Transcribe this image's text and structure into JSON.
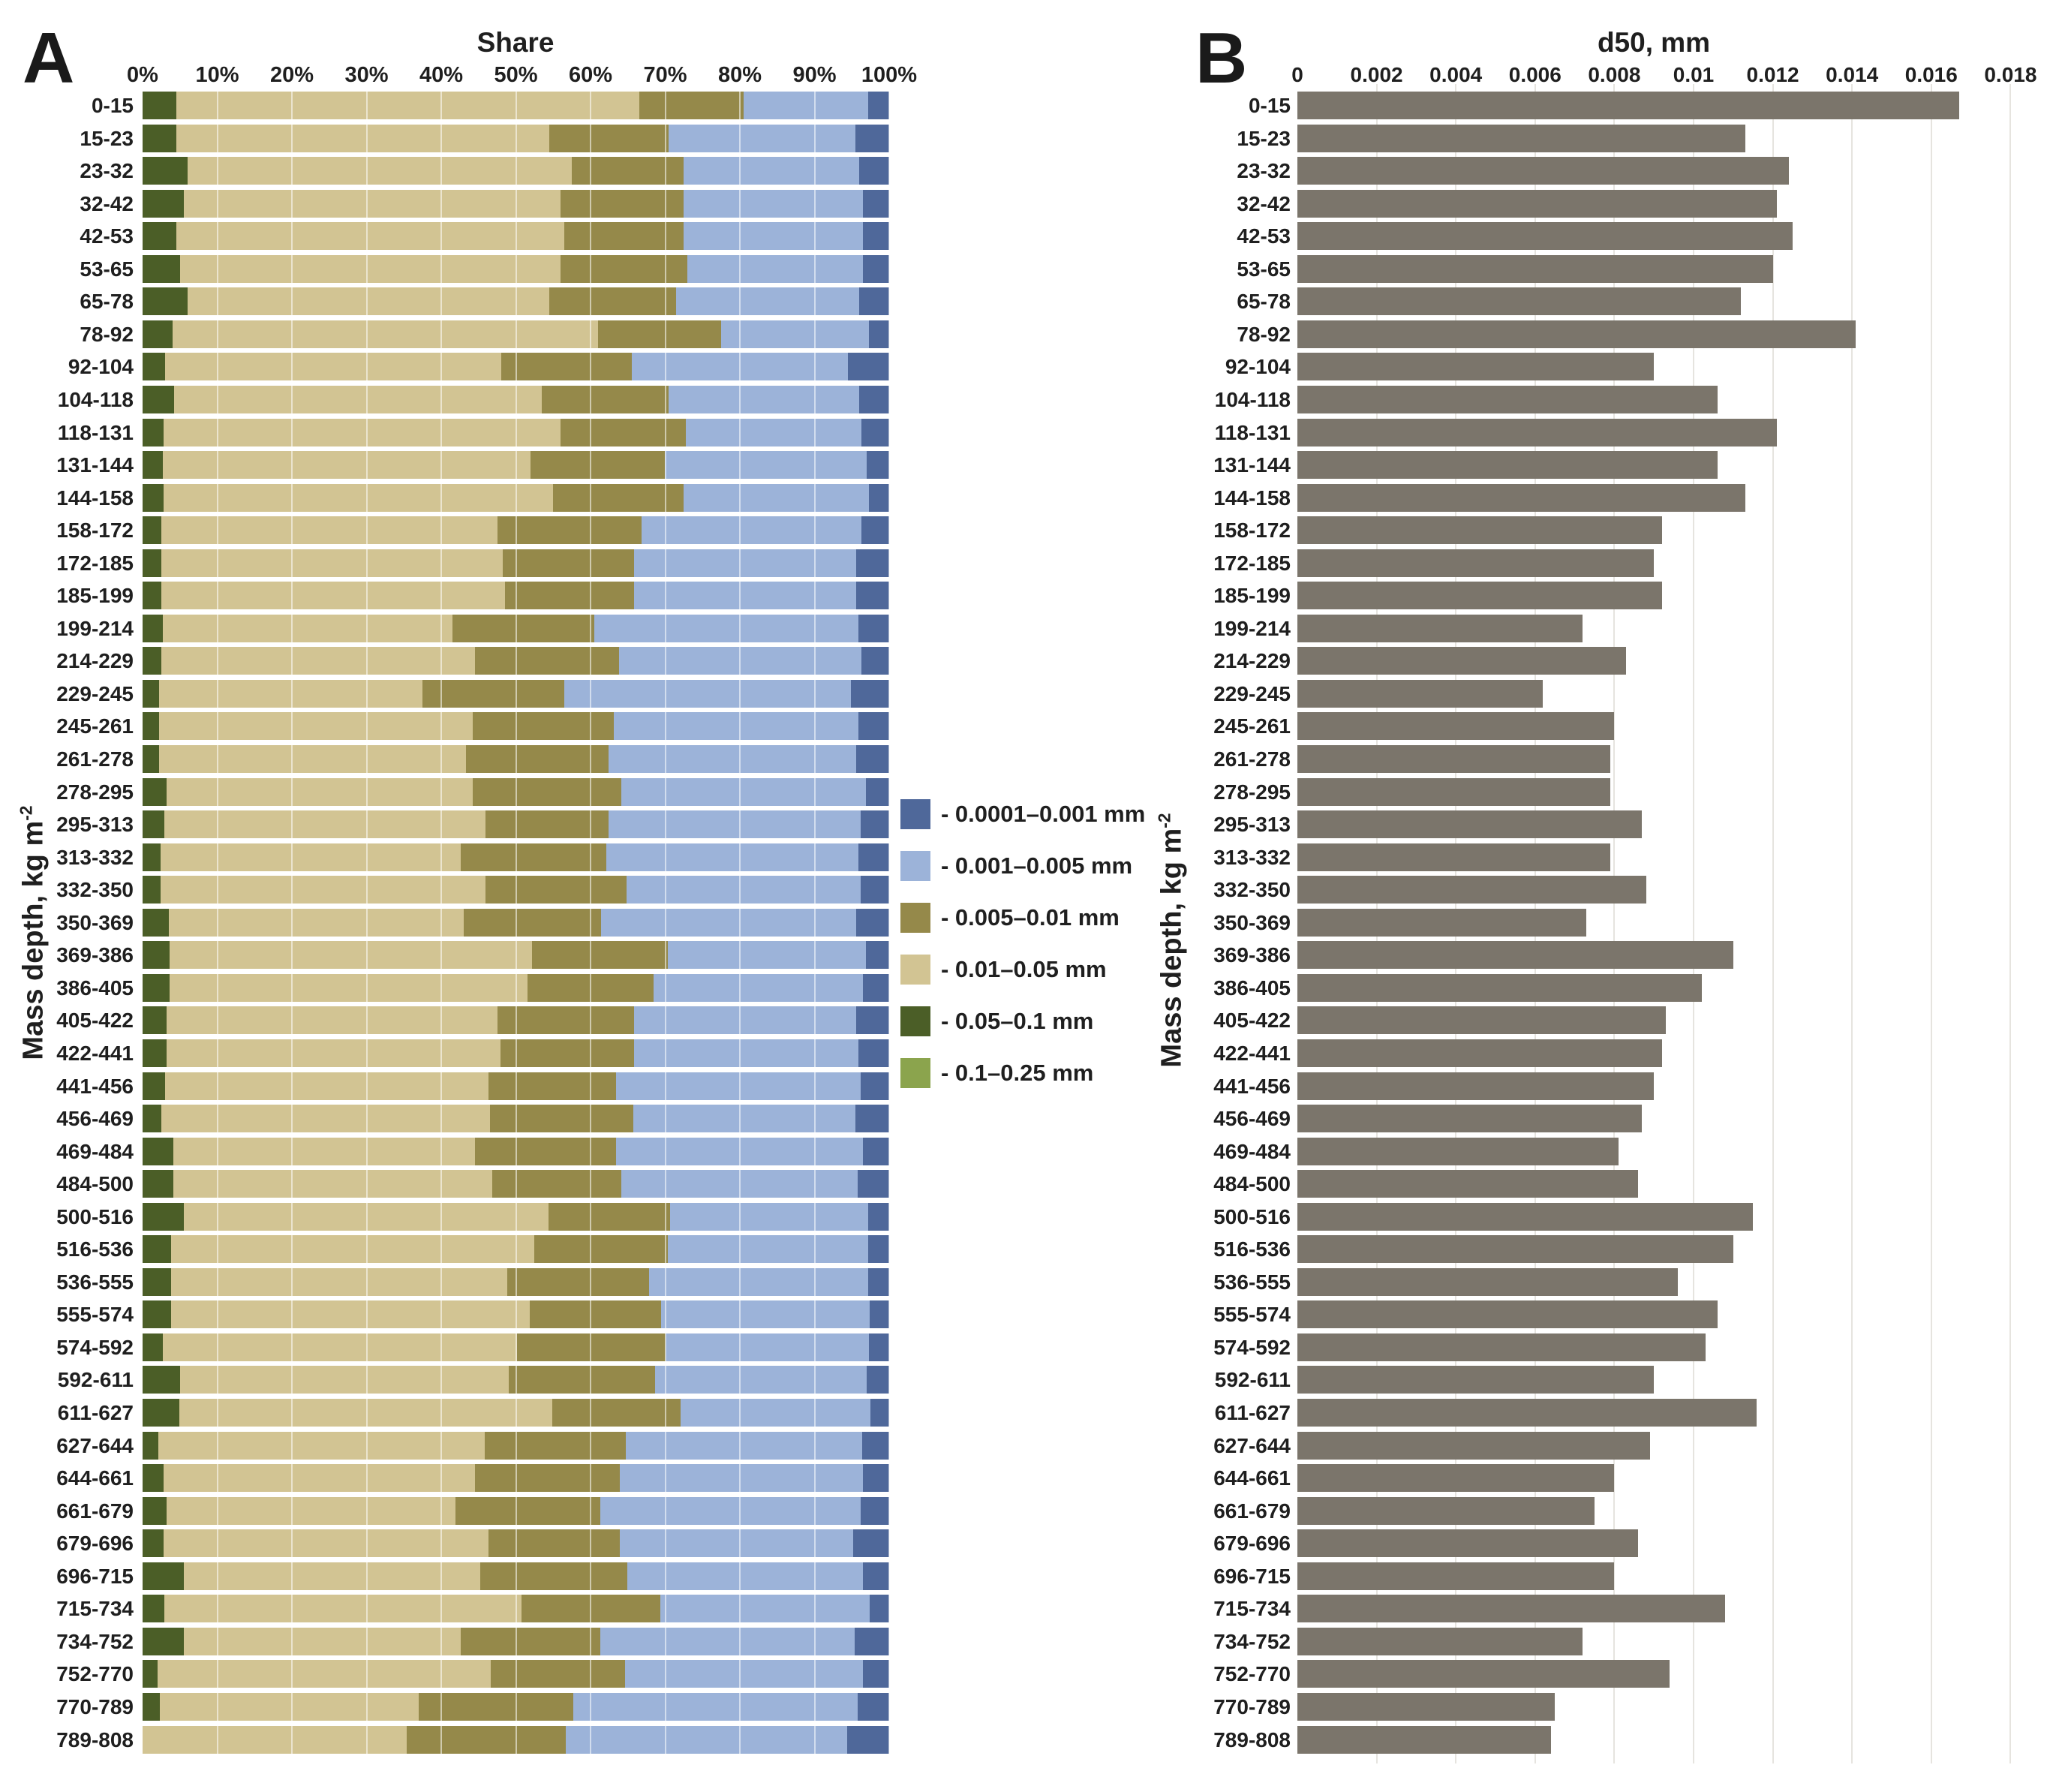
{
  "figure": {
    "panel_a": {
      "letter": "A",
      "title": "Share",
      "y_axis_label": {
        "text": "Mass depth, kg m",
        "sup": "-2"
      }
    },
    "panel_b": {
      "letter": "B",
      "title": "d50, mm",
      "y_axis_label": {
        "text": "Mass depth, kg m",
        "sup": "-2"
      }
    },
    "legend": {
      "items": [
        {
          "label": "- 0.0001–0.001 mm",
          "color": "#4f689a"
        },
        {
          "label": "- 0.001–0.005 mm",
          "color": "#9cb3d9"
        },
        {
          "label": "- 0.005–0.01 mm",
          "color": "#95894a"
        },
        {
          "label": "- 0.01–0.05 mm",
          "color": "#d2c493"
        },
        {
          "label": "- 0.05–0.1 mm",
          "color": "#4b5e27"
        },
        {
          "label": "- 0.1–0.25 mm",
          "color": "#8ba44d"
        }
      ]
    }
  },
  "chart_data": [
    {
      "type": "bar",
      "orientation": "horizontal",
      "stacked": true,
      "title": "Share",
      "xlabel": "Share",
      "ylabel": "Mass depth, kg m-2",
      "xlim": [
        0,
        100
      ],
      "xticks": [
        "0%",
        "10%",
        "20%",
        "30%",
        "40%",
        "50%",
        "60%",
        "70%",
        "80%",
        "90%",
        "100%"
      ],
      "grid": true,
      "legend_position": "right",
      "categories": [
        "0-15",
        "15-23",
        "23-32",
        "32-42",
        "42-53",
        "53-65",
        "65-78",
        "78-92",
        "92-104",
        "104-118",
        "118-131",
        "131-144",
        "144-158",
        "158-172",
        "172-185",
        "185-199",
        "199-214",
        "214-229",
        "229-245",
        "245-261",
        "261-278",
        "278-295",
        "295-313",
        "313-332",
        "332-350",
        "350-369",
        "369-386",
        "386-405",
        "405-422",
        "422-441",
        "441-456",
        "456-469",
        "469-484",
        "484-500",
        "500-516",
        "516-536",
        "536-555",
        "555-574",
        "574-592",
        "592-611",
        "611-627",
        "627-644",
        "644-661",
        "661-679",
        "679-696",
        "696-715",
        "715-734",
        "734-752",
        "752-770",
        "770-789",
        "789-808"
      ],
      "series": [
        {
          "name": "0.1–0.25 mm",
          "color": "#8ba44d",
          "values": [
            0,
            0,
            0,
            0,
            0,
            0,
            0,
            0,
            0,
            0,
            0,
            0,
            0,
            0,
            0,
            0,
            0,
            0,
            0,
            0,
            0,
            0,
            0,
            0,
            0,
            0,
            0,
            0,
            0,
            0,
            0,
            0,
            0,
            0,
            0,
            0,
            0,
            0,
            0,
            0,
            0,
            0,
            0,
            0,
            0,
            0,
            0,
            0,
            0,
            0,
            0
          ]
        },
        {
          "name": "0.05–0.1 mm",
          "color": "#4b5e27",
          "values": [
            4.5,
            4.5,
            6.0,
            5.5,
            4.5,
            5.0,
            6.0,
            4.0,
            3.0,
            4.2,
            2.8,
            2.7,
            2.8,
            2.5,
            2.5,
            2.5,
            2.7,
            2.5,
            2.2,
            2.2,
            2.2,
            3.2,
            2.9,
            2.4,
            2.4,
            3.5,
            3.6,
            3.6,
            3.2,
            3.2,
            3.0,
            2.5,
            4.1,
            4.1,
            5.5,
            3.8,
            3.8,
            3.8,
            2.7,
            5.0,
            4.9,
            2.1,
            2.8,
            3.2,
            2.8,
            5.5,
            2.9,
            5.5,
            2.0,
            2.3,
            0.0
          ]
        },
        {
          "name": "0.01–0.05 mm",
          "color": "#d2c493",
          "values": [
            62.0,
            50.0,
            51.5,
            50.5,
            52.0,
            51.0,
            48.5,
            57.0,
            45.0,
            49.3,
            53.2,
            49.3,
            52.2,
            45.0,
            45.7,
            46.0,
            38.8,
            42.0,
            35.3,
            42.0,
            41.1,
            41.0,
            43.0,
            40.2,
            43.5,
            39.5,
            48.6,
            48.0,
            44.3,
            44.7,
            43.3,
            44.0,
            40.4,
            42.7,
            48.9,
            48.7,
            45.0,
            48.1,
            47.5,
            44.0,
            50.0,
            43.7,
            41.7,
            38.7,
            43.5,
            39.7,
            47.9,
            37.1,
            44.6,
            34.7,
            35.4
          ]
        },
        {
          "name": "0.005–0.01 mm",
          "color": "#95894a",
          "values": [
            14.0,
            16.0,
            15.0,
            16.5,
            16.0,
            17.0,
            17.0,
            16.5,
            17.5,
            17.0,
            16.8,
            18.0,
            17.5,
            19.3,
            17.6,
            17.3,
            19.0,
            19.3,
            19.0,
            18.9,
            19.1,
            19.9,
            16.5,
            19.5,
            18.9,
            18.4,
            18.2,
            16.8,
            18.3,
            17.9,
            17.1,
            19.2,
            18.9,
            17.3,
            16.3,
            17.9,
            19.0,
            17.5,
            19.9,
            19.6,
            17.2,
            18.9,
            19.4,
            19.4,
            17.6,
            19.7,
            18.5,
            18.7,
            18.0,
            20.7,
            21.3
          ]
        },
        {
          "name": "0.001–0.005 mm",
          "color": "#9cb3d9",
          "values": [
            16.7,
            25.0,
            23.5,
            24.0,
            24.0,
            23.5,
            24.5,
            19.8,
            29.0,
            25.5,
            23.5,
            27.0,
            24.8,
            29.5,
            29.8,
            29.8,
            35.4,
            32.5,
            38.4,
            32.8,
            33.2,
            32.8,
            33.8,
            33.8,
            31.4,
            34.2,
            26.5,
            28.1,
            29.8,
            30.1,
            32.8,
            29.8,
            33.1,
            31.7,
            26.5,
            26.8,
            29.4,
            28.0,
            27.2,
            28.4,
            25.4,
            31.7,
            32.6,
            34.9,
            31.3,
            31.6,
            28.1,
            34.1,
            31.9,
            38.1,
            37.7
          ]
        },
        {
          "name": "0.0001–0.001 mm",
          "color": "#4f689a",
          "values": [
            2.8,
            4.5,
            4.0,
            3.5,
            3.5,
            3.5,
            4.0,
            2.7,
            5.5,
            4.0,
            3.7,
            3.0,
            2.7,
            3.7,
            4.4,
            4.4,
            4.1,
            3.7,
            5.1,
            4.1,
            4.4,
            3.1,
            3.8,
            4.1,
            3.8,
            4.4,
            3.1,
            3.5,
            4.4,
            4.1,
            3.8,
            4.5,
            3.5,
            4.2,
            2.8,
            2.8,
            2.8,
            2.6,
            2.7,
            3.0,
            2.5,
            3.6,
            3.5,
            3.8,
            4.8,
            3.5,
            2.6,
            4.6,
            3.5,
            4.2,
            5.6
          ]
        }
      ]
    },
    {
      "type": "bar",
      "orientation": "horizontal",
      "stacked": false,
      "title": "d50, mm",
      "xlabel": "d50, mm",
      "ylabel": "Mass depth, kg m-2",
      "xlim": [
        0,
        0.018
      ],
      "xticks": [
        "0",
        "0.002",
        "0.004",
        "0.006",
        "0.008",
        "0.01",
        "0.012",
        "0.014",
        "0.016",
        "0.018"
      ],
      "grid": true,
      "bar_color": "#7b756b",
      "categories": [
        "0-15",
        "15-23",
        "23-32",
        "32-42",
        "42-53",
        "53-65",
        "65-78",
        "78-92",
        "92-104",
        "104-118",
        "118-131",
        "131-144",
        "144-158",
        "158-172",
        "172-185",
        "185-199",
        "199-214",
        "214-229",
        "229-245",
        "245-261",
        "261-278",
        "278-295",
        "295-313",
        "313-332",
        "332-350",
        "350-369",
        "369-386",
        "386-405",
        "405-422",
        "422-441",
        "441-456",
        "456-469",
        "469-484",
        "484-500",
        "500-516",
        "516-536",
        "536-555",
        "555-574",
        "574-592",
        "592-611",
        "611-627",
        "627-644",
        "644-661",
        "661-679",
        "679-696",
        "696-715",
        "715-734",
        "734-752",
        "752-770",
        "770-789",
        "789-808"
      ],
      "values": [
        0.0167,
        0.0113,
        0.0124,
        0.0121,
        0.0125,
        0.012,
        0.0112,
        0.0141,
        0.009,
        0.0106,
        0.0121,
        0.0106,
        0.0113,
        0.0092,
        0.009,
        0.0092,
        0.0072,
        0.0083,
        0.0062,
        0.008,
        0.0079,
        0.0079,
        0.0087,
        0.0079,
        0.0088,
        0.0073,
        0.011,
        0.0102,
        0.0093,
        0.0092,
        0.009,
        0.0087,
        0.0081,
        0.0086,
        0.0115,
        0.011,
        0.0096,
        0.0106,
        0.0103,
        0.009,
        0.0116,
        0.0089,
        0.008,
        0.0075,
        0.0086,
        0.008,
        0.0108,
        0.0072,
        0.0094,
        0.0065,
        0.0064
      ]
    }
  ]
}
